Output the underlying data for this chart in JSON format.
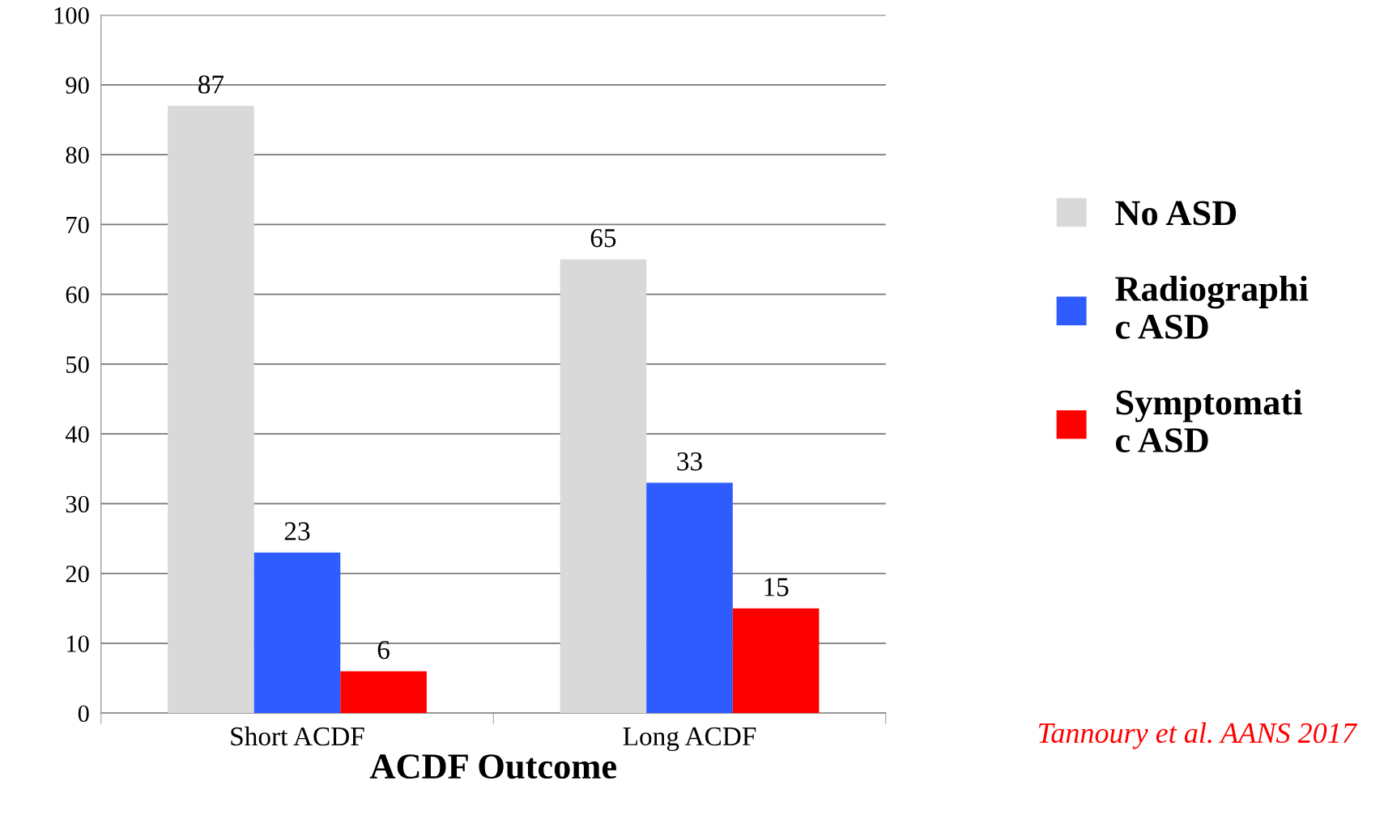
{
  "chart_data": {
    "type": "bar",
    "xlabel": "ACDF Outcome",
    "categories": [
      "Short ACDF",
      "Long ACDF"
    ],
    "series": [
      {
        "name": "No ASD",
        "color": "#d9d9d9",
        "values": [
          87,
          65
        ]
      },
      {
        "name": "Radiographi\nc ASD",
        "color": "#2f5cff",
        "values": [
          23,
          33
        ]
      },
      {
        "name": "Symptomati\nc ASD",
        "color": "#ff0000",
        "values": [
          6,
          15
        ]
      }
    ],
    "ylim": [
      0,
      100
    ],
    "yticks": [
      0,
      10,
      20,
      30,
      40,
      50,
      60,
      70,
      80,
      90,
      100
    ],
    "grid": "y",
    "legend": "right",
    "data_labels": true,
    "annotations": [
      "Tannoury et al. AANS 2017"
    ]
  }
}
